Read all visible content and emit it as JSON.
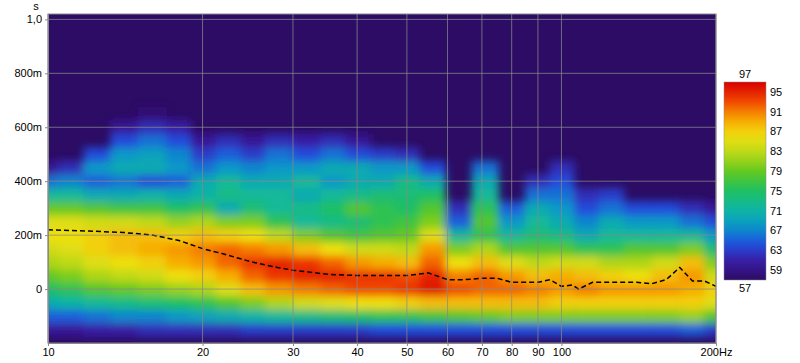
{
  "chart_data": {
    "type": "heatmap",
    "ylabel": "s",
    "log": "x",
    "grid": true,
    "xlim": [
      10,
      200
    ],
    "ylim": [
      -0.2,
      1.02
    ],
    "xticks": [
      10,
      20,
      30,
      40,
      50,
      60,
      70,
      80,
      90,
      100,
      {
        "value": 200,
        "label": "200Hz"
      }
    ],
    "yticks": [
      0,
      {
        "value": 0.2,
        "label": "200m"
      },
      {
        "value": 0.4,
        "label": "400m"
      },
      {
        "value": 0.6,
        "label": "600m"
      },
      {
        "value": 0.8,
        "label": "800m"
      },
      {
        "value": 1,
        "label": "1,0"
      }
    ],
    "x": [
      10,
      11,
      12.5,
      14,
      16,
      18,
      20,
      22.5,
      25,
      28,
      32,
      36,
      40,
      45,
      50,
      56,
      63,
      71,
      80,
      90,
      100,
      112,
      125,
      140,
      160,
      180,
      200
    ],
    "y": [
      -0.2,
      -0.15,
      -0.1,
      -0.05,
      0,
      0.05,
      0.1,
      0.15,
      0.2,
      0.25,
      0.3,
      0.35,
      0.4,
      0.45,
      0.5,
      0.55,
      0.6,
      0.65,
      0.7
    ],
    "values": [
      [
        null,
        60,
        65,
        70,
        75,
        79,
        82,
        84,
        86,
        85,
        79,
        72,
        66,
        60,
        null,
        null,
        null,
        null,
        null
      ],
      [
        null,
        60,
        65,
        71,
        76,
        80,
        83,
        85,
        86,
        85,
        79,
        72,
        67,
        62,
        null,
        null,
        null,
        null,
        null
      ],
      [
        null,
        61,
        66,
        72,
        78,
        82,
        85,
        87,
        87,
        84,
        78,
        70,
        65,
        68,
        64,
        null,
        null,
        null,
        null
      ],
      [
        null,
        61,
        67,
        73,
        79,
        83,
        86,
        88,
        88,
        84,
        77,
        70,
        66,
        70,
        68,
        64,
        60,
        null,
        null
      ],
      [
        null,
        62,
        67,
        74,
        80,
        84,
        87,
        89,
        88,
        83,
        77,
        71,
        64,
        70,
        69,
        66,
        62,
        58,
        null
      ],
      [
        null,
        62,
        68,
        75,
        81,
        86,
        89,
        90,
        87,
        81,
        75,
        70,
        65,
        68,
        67,
        64,
        61,
        null,
        null
      ],
      [
        null,
        62,
        69,
        76,
        82,
        87,
        90,
        91,
        88,
        82,
        76,
        71,
        70,
        66,
        63,
        60,
        null,
        null,
        null
      ],
      [
        null,
        62,
        70,
        78,
        85,
        89,
        92,
        92,
        87,
        80,
        70,
        73,
        72,
        68,
        65,
        62,
        null,
        null,
        null
      ],
      [
        null,
        63,
        71,
        80,
        88,
        92,
        94,
        91,
        86,
        80,
        74,
        72,
        70,
        67,
        63,
        60,
        null,
        null,
        null
      ],
      [
        null,
        63,
        72,
        82,
        90,
        94,
        95,
        90,
        83,
        76,
        72,
        72,
        70,
        68,
        66,
        62,
        null,
        null,
        null
      ],
      [
        null,
        63,
        73,
        84,
        91,
        95,
        94,
        88,
        80,
        72,
        73,
        70,
        72,
        68,
        64,
        61,
        null,
        null,
        null
      ],
      [
        null,
        63,
        74,
        85,
        92,
        95,
        92,
        86,
        78,
        73,
        75,
        72,
        68,
        70,
        66,
        62,
        null,
        null,
        null
      ],
      [
        null,
        63,
        75,
        86,
        93,
        94,
        90,
        84,
        77,
        74,
        78,
        73,
        70,
        70,
        64,
        60,
        null,
        null,
        null
      ],
      [
        null,
        64,
        76,
        86,
        93,
        94,
        89,
        84,
        78,
        76,
        76,
        74,
        70,
        68,
        63,
        null,
        null,
        null,
        null
      ],
      [
        null,
        64,
        76,
        87,
        94,
        93,
        88,
        83,
        79,
        77,
        75,
        74,
        73,
        68,
        62,
        null,
        null,
        null,
        null
      ],
      [
        null,
        64,
        77,
        88,
        96,
        95,
        92,
        90,
        85,
        80,
        78,
        75,
        70,
        64,
        null,
        null,
        null,
        null,
        null
      ],
      [
        null,
        64,
        78,
        88,
        93,
        91,
        86,
        80,
        72,
        65,
        62,
        null,
        null,
        null,
        null,
        null,
        null,
        null,
        null
      ],
      [
        null,
        64,
        79,
        88,
        92,
        92,
        88,
        82,
        76,
        78,
        76,
        72,
        70,
        66,
        null,
        null,
        null,
        null,
        null
      ],
      [
        null,
        64,
        80,
        88,
        92,
        90,
        85,
        78,
        72,
        68,
        65,
        null,
        null,
        null,
        null,
        null,
        null,
        null,
        null
      ],
      [
        null,
        64,
        80,
        88,
        91,
        88,
        83,
        78,
        74,
        72,
        70,
        66,
        62,
        null,
        null,
        null,
        null,
        null,
        null
      ],
      [
        null,
        64,
        80,
        87,
        90,
        89,
        84,
        78,
        73,
        70,
        68,
        66,
        64,
        62,
        null,
        null,
        null,
        null,
        null
      ],
      [
        null,
        64,
        80,
        87,
        91,
        88,
        84,
        76,
        70,
        67,
        64,
        62,
        null,
        null,
        null,
        null,
        null,
        null,
        null
      ],
      [
        null,
        64,
        80,
        87,
        90,
        87,
        82,
        76,
        72,
        70,
        66,
        63,
        null,
        null,
        null,
        null,
        null,
        null,
        null
      ],
      [
        null,
        64,
        80,
        87,
        90,
        86,
        82,
        78,
        72,
        68,
        64,
        null,
        null,
        null,
        null,
        null,
        null,
        null,
        null
      ],
      [
        null,
        64,
        80,
        87,
        90,
        88,
        84,
        78,
        72,
        68,
        64,
        null,
        null,
        null,
        null,
        null,
        null,
        null,
        null
      ],
      [
        null,
        65,
        81,
        87,
        89,
        90,
        88,
        80,
        72,
        66,
        62,
        null,
        null,
        null,
        null,
        null,
        null,
        null,
        null
      ],
      [
        null,
        63,
        78,
        85,
        87,
        84,
        80,
        74,
        68,
        64,
        60,
        null,
        null,
        null,
        null,
        null,
        null,
        null,
        null
      ]
    ],
    "zlim": [
      57,
      97
    ],
    "zticks": [
      57,
      59,
      63,
      67,
      71,
      75,
      79,
      83,
      87,
      91,
      95,
      97
    ],
    "series": [
      {
        "type": "line",
        "color": "#000000",
        "line_style": "dashed",
        "x": [
          10,
          12,
          14,
          16,
          18,
          20,
          22,
          25,
          28,
          30,
          35,
          40,
          45,
          50,
          55,
          60,
          65,
          70,
          75,
          80,
          90,
          95,
          100,
          105,
          108,
          115,
          125,
          140,
          150,
          160,
          170,
          180,
          190,
          200
        ],
        "values": [
          0.22,
          0.215,
          0.21,
          0.2,
          0.18,
          0.15,
          0.13,
          0.1,
          0.08,
          0.07,
          0.055,
          0.05,
          0.05,
          0.05,
          0.06,
          0.035,
          0.035,
          0.04,
          0.04,
          0.025,
          0.025,
          0.035,
          0.01,
          0.015,
          0,
          0.025,
          0.025,
          0.025,
          0.02,
          0.035,
          0.08,
          0.03,
          0.03,
          0.01
        ]
      }
    ]
  }
}
